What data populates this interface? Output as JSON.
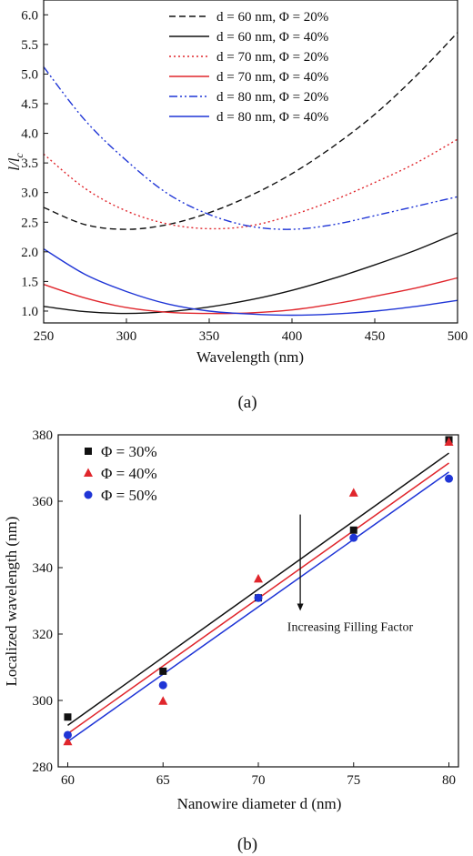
{
  "panels": [
    {
      "caption": "(a)",
      "chart_data": {
        "type": "line",
        "xlabel": "Wavelength (nm)",
        "ylabel_main": "l/l",
        "ylabel_sub": "c",
        "xlim": [
          250,
          500
        ],
        "ylim": [
          0.8,
          6.25
        ],
        "xticks": [
          250,
          300,
          350,
          400,
          450,
          500
        ],
        "yticks": [
          1.0,
          1.5,
          2.0,
          2.5,
          3.0,
          3.5,
          4.0,
          4.5,
          5.0,
          5.5,
          6.0
        ],
        "grid": false,
        "legend_position": "top-right",
        "series": [
          {
            "name": "d = 60 nm, Φ = 20%",
            "color": "#111111",
            "dash": "dashed",
            "x": [
              250,
              275,
              300,
              325,
              350,
              375,
              400,
              425,
              450,
              475,
              500
            ],
            "y": [
              2.75,
              2.46,
              2.38,
              2.46,
              2.66,
              2.95,
              3.32,
              3.78,
              4.32,
              4.97,
              5.7
            ]
          },
          {
            "name": "d = 60 nm, Φ = 40%",
            "color": "#111111",
            "dash": "solid",
            "x": [
              250,
              275,
              300,
              325,
              350,
              375,
              400,
              425,
              450,
              475,
              500
            ],
            "y": [
              1.08,
              0.99,
              0.96,
              0.99,
              1.07,
              1.19,
              1.35,
              1.55,
              1.78,
              2.03,
              2.32
            ]
          },
          {
            "name": "d = 70 nm, Φ = 20%",
            "color": "#e0262c",
            "dash": "dotted",
            "x": [
              250,
              275,
              300,
              325,
              350,
              375,
              400,
              425,
              450,
              475,
              500
            ],
            "y": [
              3.65,
              3.07,
              2.69,
              2.47,
              2.39,
              2.44,
              2.62,
              2.87,
              3.17,
              3.5,
              3.9
            ]
          },
          {
            "name": "d = 70 nm, Φ = 40%",
            "color": "#e0262c",
            "dash": "solid",
            "x": [
              250,
              275,
              300,
              325,
              350,
              375,
              400,
              425,
              450,
              475,
              500
            ],
            "y": [
              1.45,
              1.22,
              1.06,
              0.98,
              0.96,
              0.97,
              1.02,
              1.12,
              1.25,
              1.39,
              1.56
            ]
          },
          {
            "name": "d = 80 nm, Φ = 20%",
            "color": "#1f35d6",
            "dash": "dashdotdot",
            "x": [
              250,
              275,
              300,
              325,
              350,
              375,
              400,
              425,
              450,
              475,
              500
            ],
            "y": [
              5.12,
              4.22,
              3.54,
              2.98,
              2.63,
              2.43,
              2.38,
              2.46,
              2.61,
              2.77,
              2.93
            ]
          },
          {
            "name": "d = 80 nm, Φ = 40%",
            "color": "#1f35d6",
            "dash": "solid",
            "x": [
              250,
              275,
              300,
              325,
              350,
              375,
              400,
              425,
              450,
              475,
              500
            ],
            "y": [
              2.05,
              1.62,
              1.33,
              1.12,
              1.0,
              0.95,
              0.93,
              0.95,
              1.0,
              1.08,
              1.18
            ]
          }
        ]
      }
    },
    {
      "caption": "(b)",
      "chart_data": {
        "type": "scatter",
        "xlabel": "Nanowire diameter d (nm)",
        "ylabel": "Localized wavelength (nm)",
        "xlim": [
          59.5,
          80.5
        ],
        "ylim": [
          280,
          380
        ],
        "xticks": [
          60,
          65,
          70,
          75,
          80
        ],
        "yticks": [
          280,
          300,
          320,
          340,
          360,
          380
        ],
        "grid": false,
        "legend_position": "top-left",
        "annotation": {
          "text": "Increasing Filling Factor",
          "arrow_x": 72.2,
          "arrow_from_y": 356,
          "arrow_to_y": 327
        },
        "series": [
          {
            "name": "Φ = 30%",
            "color": "#111111",
            "marker": "square",
            "x": [
              60,
              65,
              70,
              75,
              80
            ],
            "y": [
              295.0,
              308.8,
              330.9,
              351.3,
              378.5
            ],
            "fit": [
              292.5,
              374.5
            ]
          },
          {
            "name": "Φ = 40%",
            "color": "#e0262c",
            "marker": "triangle",
            "x": [
              60,
              65,
              70,
              75,
              80
            ],
            "y": [
              287.6,
              299.8,
              336.6,
              362.5,
              377.8
            ],
            "fit": [
              290.0,
              371.5
            ]
          },
          {
            "name": "Φ = 50%",
            "color": "#1f35d6",
            "marker": "circle",
            "x": [
              60,
              65,
              70,
              75,
              80
            ],
            "y": [
              289.6,
              304.6,
              330.9,
              349.0,
              366.8
            ],
            "fit": [
              287.6,
              368.8
            ]
          }
        ]
      }
    }
  ]
}
